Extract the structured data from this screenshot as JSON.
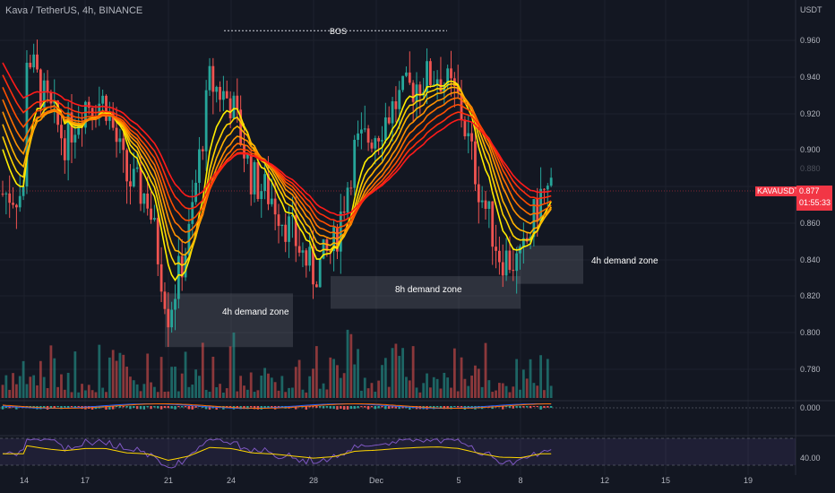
{
  "header": {
    "title": "Kava / TetherUS, 4h, BINANCE",
    "currency": "USDT"
  },
  "price_marker": {
    "symbol": "KAVAUSDT",
    "price": "0.877",
    "countdown": "01:55:33",
    "color": "#f23645"
  },
  "annotations": {
    "bos": "BOS",
    "zones": [
      "4h demand zone",
      "8h demand zone",
      "4h demand zone"
    ]
  },
  "indicators": {
    "macd_value": "0.000",
    "rsi_value": "40.00"
  },
  "colors": {
    "up": "#26a69a",
    "down": "#ef5350",
    "background": "#131722",
    "ribbon_top": "#ff1a1a",
    "ribbon_bottom": "#ffee00"
  },
  "chart_data": {
    "type": "candlestick",
    "x_ticks": [
      "14",
      "17",
      "21",
      "24",
      "28",
      "Dec",
      "5",
      "8",
      "12",
      "15",
      "19"
    ],
    "y_ticks": [
      "0.960",
      "0.940",
      "0.920",
      "0.900",
      "0.880",
      "0.860",
      "0.840",
      "0.820",
      "0.800",
      "0.780"
    ],
    "ylim": [
      0.77,
      0.978
    ],
    "last_price": 0.877,
    "close_path": [
      {
        "x": "14",
        "y": 0.955
      },
      {
        "x": "15",
        "y": 0.925
      },
      {
        "x": "16",
        "y": 0.905
      },
      {
        "x": "17",
        "y": 0.925
      },
      {
        "x": "18",
        "y": 0.925
      },
      {
        "x": "19",
        "y": 0.885
      },
      {
        "x": "20",
        "y": 0.875
      },
      {
        "x": "21",
        "y": 0.815
      },
      {
        "x": "22",
        "y": 0.855
      },
      {
        "x": "23",
        "y": 0.935
      },
      {
        "x": "24",
        "y": 0.925
      },
      {
        "x": "25",
        "y": 0.885
      },
      {
        "x": "26",
        "y": 0.875
      },
      {
        "x": "27",
        "y": 0.855
      },
      {
        "x": "28",
        "y": 0.835
      },
      {
        "x": "29",
        "y": 0.85
      },
      {
        "x": "30",
        "y": 0.9
      },
      {
        "x": "Dec",
        "y": 0.91
      },
      {
        "x": "2",
        "y": 0.925
      },
      {
        "x": "3",
        "y": 0.935
      },
      {
        "x": "4",
        "y": 0.94
      },
      {
        "x": "5",
        "y": 0.925
      },
      {
        "x": "6",
        "y": 0.88
      },
      {
        "x": "7",
        "y": 0.845
      },
      {
        "x": "8",
        "y": 0.84
      },
      {
        "x": "9",
        "y": 0.877
      }
    ],
    "bos": {
      "level": 0.962,
      "from": "23",
      "to": "4"
    },
    "demand_zones": [
      {
        "label": "4h demand zone",
        "from": "21",
        "to": "27",
        "low": 0.797,
        "high": 0.825
      },
      {
        "label": "8h demand zone",
        "from": "29",
        "to": "8",
        "low": 0.817,
        "high": 0.834
      },
      {
        "label": "4h demand zone",
        "from": "8",
        "to": "11",
        "low": 0.83,
        "high": 0.85
      }
    ]
  }
}
